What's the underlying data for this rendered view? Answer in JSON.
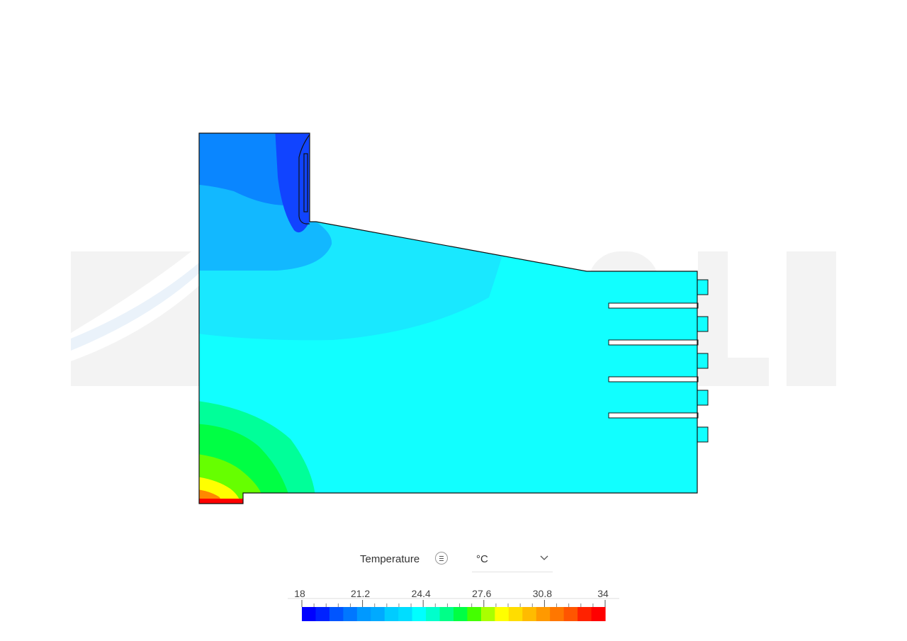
{
  "watermark": {
    "text": "SIMSCALE"
  },
  "legend": {
    "quantity": "Temperature",
    "unit": "°C",
    "tick_labels": [
      "18",
      "21.2",
      "24.4",
      "27.6",
      "30.8",
      "34"
    ],
    "min": 18,
    "max": 34,
    "colors": [
      "#0000ff",
      "#0022ff",
      "#0055ff",
      "#0077ff",
      "#0099ff",
      "#00aaff",
      "#00ccff",
      "#00ddff",
      "#00ffff",
      "#00ffcc",
      "#00ff88",
      "#00ff44",
      "#44ff00",
      "#aaff00",
      "#ffff00",
      "#ffdd00",
      "#ffbb00",
      "#ff9900",
      "#ff7700",
      "#ff5500",
      "#ff2200",
      "#ff0000"
    ]
  },
  "model": {
    "outlet_count": 5,
    "field_colors": {
      "inlet_core": "#1144ff",
      "inlet_side": "#0a86ff",
      "upper_band": "#12b8ff",
      "mid_band": "#19e8ff",
      "bulk": "#11ffff",
      "heat_outer": "#00ff99",
      "heat_mid": "#00ff44",
      "heat_inner": "#66ff00",
      "heat_core": "#ffff00",
      "heat_hot": "#ff8800",
      "heat_max": "#ff0000"
    }
  }
}
